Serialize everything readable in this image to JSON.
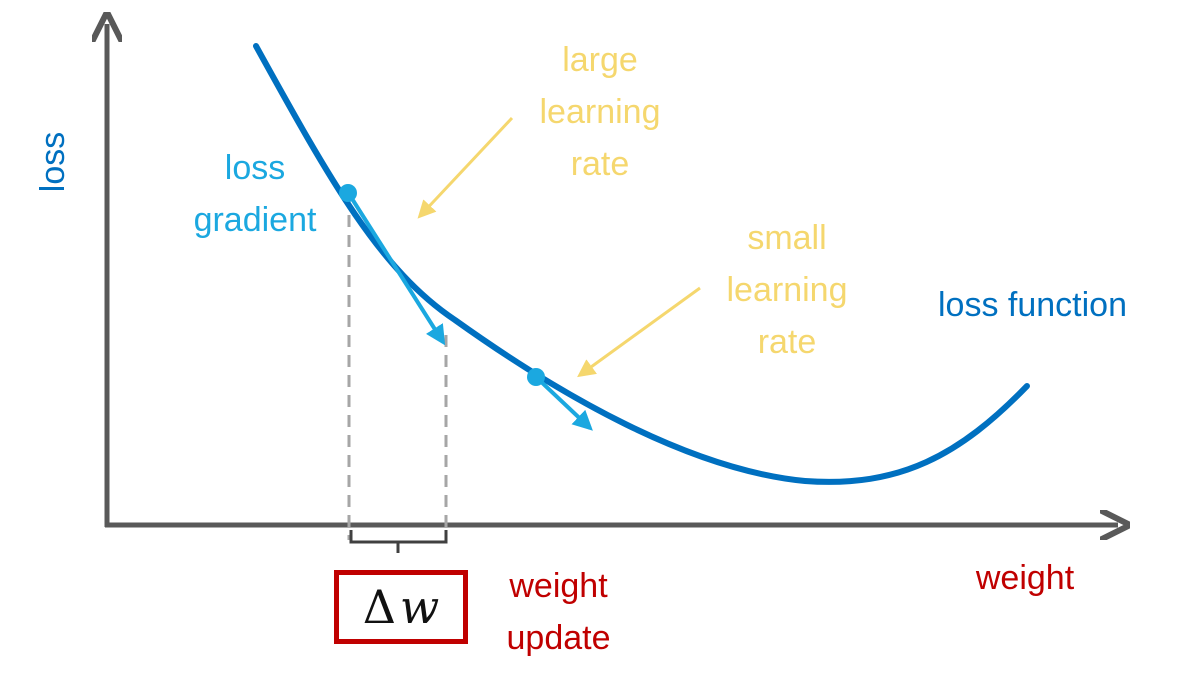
{
  "axes": {
    "y_label": "loss",
    "x_label": "weight"
  },
  "curve": {
    "label": "loss function"
  },
  "annotations": {
    "loss_gradient": [
      "loss",
      "gradient"
    ],
    "large_learning_rate": [
      "large",
      "learning",
      "rate"
    ],
    "small_learning_rate": [
      "small",
      "learning",
      "rate"
    ],
    "weight_update": [
      "weight",
      "update"
    ]
  },
  "delta": {
    "symbol": "Δ",
    "variable": "w"
  },
  "colors": {
    "axis": "#595959",
    "curve": "#0070c0",
    "gradient": "#1ba8e0",
    "learning_rate": "#f5d76e",
    "weight": "#c00000",
    "dashed": "#a6a6a6"
  }
}
